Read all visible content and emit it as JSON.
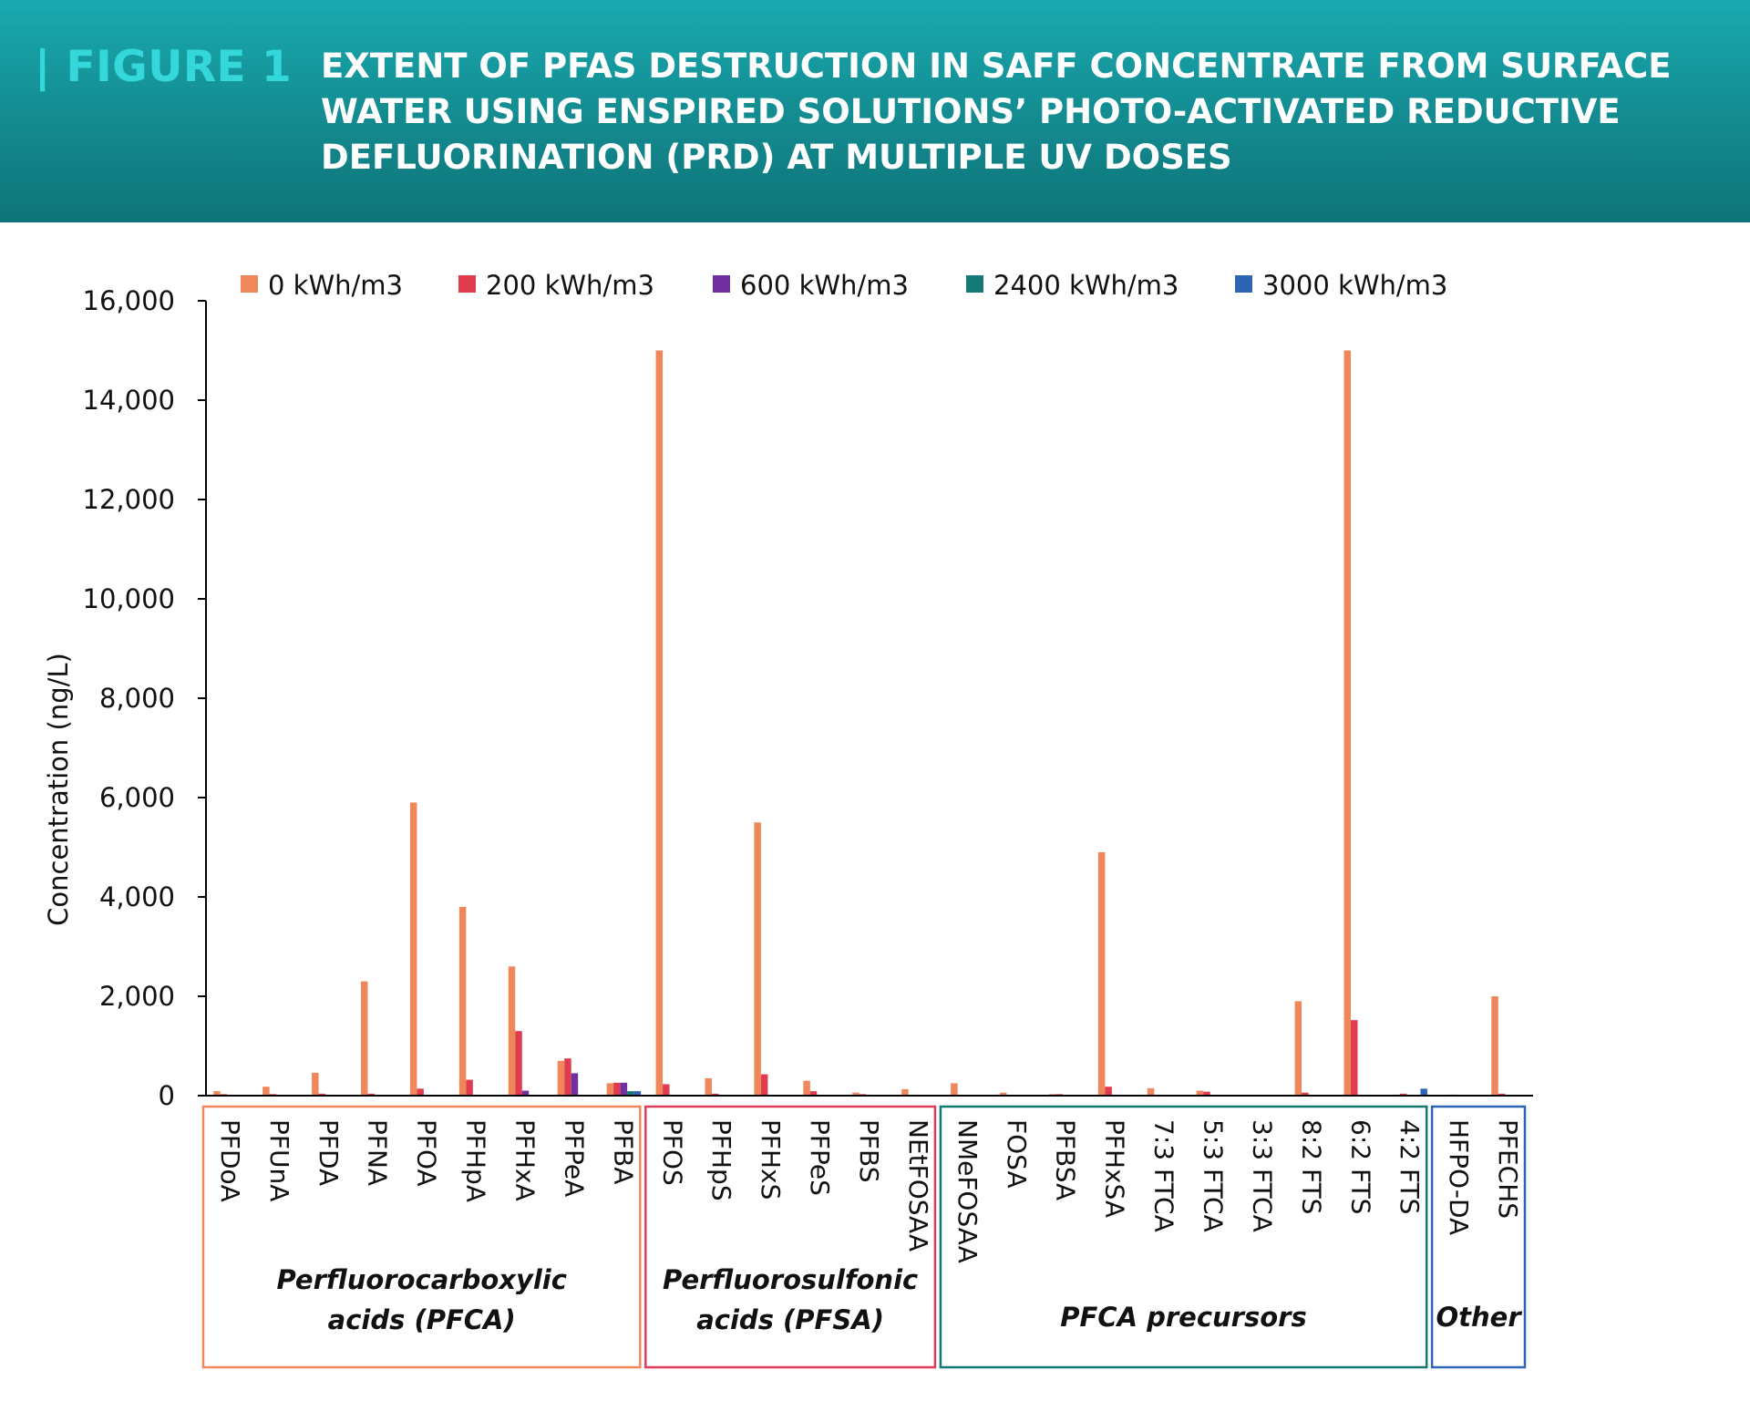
{
  "header": {
    "figure_label": "| FIGURE 1",
    "title_lines": [
      "EXTENT OF PFAS DESTRUCTION IN SAFF CONCENTRATE FROM SURFACE",
      "WATER USING ENSPIRED SOLUTIONS’ PHOTO-ACTIVATED REDUCTIVE",
      "DEFLUORINATION (PRD) AT MULTIPLE UV DOSES"
    ]
  },
  "chart_data": {
    "type": "bar",
    "title": "",
    "xlabel": "",
    "ylabel": "Concentration (ng/L)",
    "ylim": [
      0,
      16000
    ],
    "yticks": [
      0,
      2000,
      4000,
      6000,
      8000,
      10000,
      12000,
      14000,
      16000
    ],
    "ytick_labels": [
      "0",
      "2,000",
      "4,000",
      "6,000",
      "8,000",
      "10,000",
      "12,000",
      "14,000",
      "16,000"
    ],
    "grid": false,
    "legend_position": "top",
    "categories": [
      "PFDoA",
      "PFUnA",
      "PFDA",
      "PFNA",
      "PFOA",
      "PFHpA",
      "PFHxA",
      "PFPeA",
      "PFBA",
      "PFOS",
      "PFHpS",
      "PFHxS",
      "PFPeS",
      "PFBS",
      "NEtFOSAA",
      "NMeFOSAA",
      "FOSA",
      "PFBSA",
      "PFHxSA",
      "7:3 FTCA",
      "5:3 FTCA",
      "3:3 FTCA",
      "8:2 FTS",
      "6:2 FTS",
      "4:2 FTS",
      "HFPO-DA",
      "PFECHS"
    ],
    "series": [
      {
        "name": "0 kWh/m3",
        "color": "#f0875a",
        "values": [
          90,
          180,
          460,
          2300,
          5900,
          3800,
          2600,
          700,
          250,
          15000,
          350,
          5500,
          300,
          60,
          130,
          250,
          60,
          30,
          4900,
          150,
          100,
          0,
          1900,
          15000,
          20,
          10,
          2000
        ]
      },
      {
        "name": "200 kWh/m3",
        "color": "#e03c50",
        "values": [
          30,
          30,
          40,
          40,
          140,
          320,
          1300,
          750,
          260,
          230,
          40,
          430,
          90,
          30,
          0,
          0,
          0,
          30,
          180,
          0,
          80,
          0,
          60,
          1520,
          40,
          20,
          40
        ]
      },
      {
        "name": "600 kWh/m3",
        "color": "#7030a0",
        "values": [
          0,
          0,
          0,
          0,
          0,
          0,
          100,
          450,
          260,
          0,
          0,
          0,
          0,
          0,
          0,
          0,
          0,
          0,
          0,
          0,
          0,
          0,
          0,
          0,
          0,
          0,
          0
        ]
      },
      {
        "name": "2400 kWh/m3",
        "color": "#137a78",
        "values": [
          0,
          0,
          0,
          0,
          0,
          0,
          0,
          0,
          90,
          0,
          0,
          0,
          0,
          0,
          0,
          0,
          0,
          0,
          0,
          0,
          0,
          0,
          0,
          0,
          0,
          0,
          0
        ]
      },
      {
        "name": "3000 kWh/m3",
        "color": "#2e64b4",
        "values": [
          0,
          0,
          0,
          0,
          0,
          0,
          0,
          0,
          90,
          0,
          0,
          0,
          0,
          0,
          0,
          0,
          0,
          0,
          0,
          0,
          0,
          0,
          0,
          0,
          140,
          0,
          0
        ]
      }
    ],
    "groups": [
      {
        "label_lines": [
          "Perfluorocarboxylic",
          "acids (PFCA)"
        ],
        "start": 0,
        "end": 8,
        "color": "#f0875a"
      },
      {
        "label_lines": [
          "Perfluorosulfonic",
          "acids (PFSA)"
        ],
        "start": 9,
        "end": 14,
        "color": "#e03c5a"
      },
      {
        "label_lines": [
          "PFCA precursors"
        ],
        "start": 15,
        "end": 24,
        "color": "#13786f"
      },
      {
        "label_lines": [
          "Other"
        ],
        "start": 25,
        "end": 26,
        "color": "#2e64b4"
      }
    ]
  }
}
